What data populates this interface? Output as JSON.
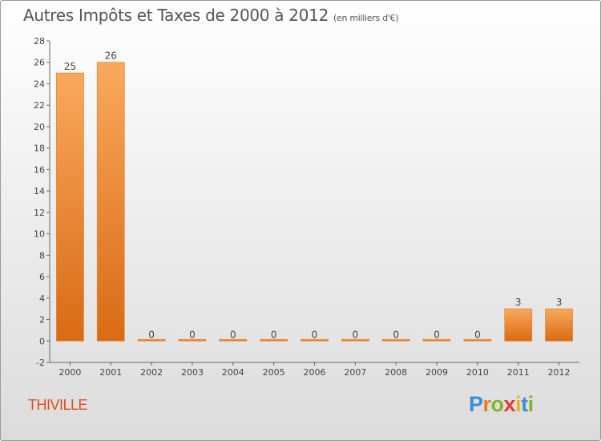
{
  "title": "Autres Impôts et Taxes de 2000 à 2012",
  "subtitle": "(en milliers d'€)",
  "commune": "THIVILLE",
  "logo": {
    "letters": [
      "P",
      "r",
      "o",
      "x",
      "i",
      "t",
      "i"
    ],
    "colors": [
      "#3c8fd6",
      "#f07a1a",
      "#7bb928",
      "#e23a3a",
      "#f0b416",
      "#3c8fd6",
      "#7bb928"
    ]
  },
  "colors": {
    "bar_light": "#f9a95c",
    "bar_dark": "#d96a14",
    "commune": "#d9501e"
  },
  "chart_data": {
    "type": "bar",
    "categories": [
      "2000",
      "2001",
      "2002",
      "2003",
      "2004",
      "2005",
      "2006",
      "2007",
      "2008",
      "2009",
      "2010",
      "2011",
      "2012"
    ],
    "values": [
      25,
      26,
      0,
      0,
      0,
      0,
      0,
      0,
      0,
      0,
      0,
      3,
      3
    ],
    "data_labels": [
      "25",
      "26",
      "0",
      "0",
      "0",
      "0",
      "0",
      "0",
      "0",
      "0",
      "0",
      "3",
      "3"
    ],
    "yticks": [
      "-2",
      "0",
      "2",
      "4",
      "6",
      "8",
      "10",
      "12",
      "14",
      "16",
      "18",
      "20",
      "22",
      "24",
      "26",
      "28"
    ],
    "ylim": [
      -2,
      28
    ],
    "grid": false,
    "title": "Autres Impôts et Taxes de 2000 à 2012",
    "xlabel": "",
    "ylabel": ""
  }
}
